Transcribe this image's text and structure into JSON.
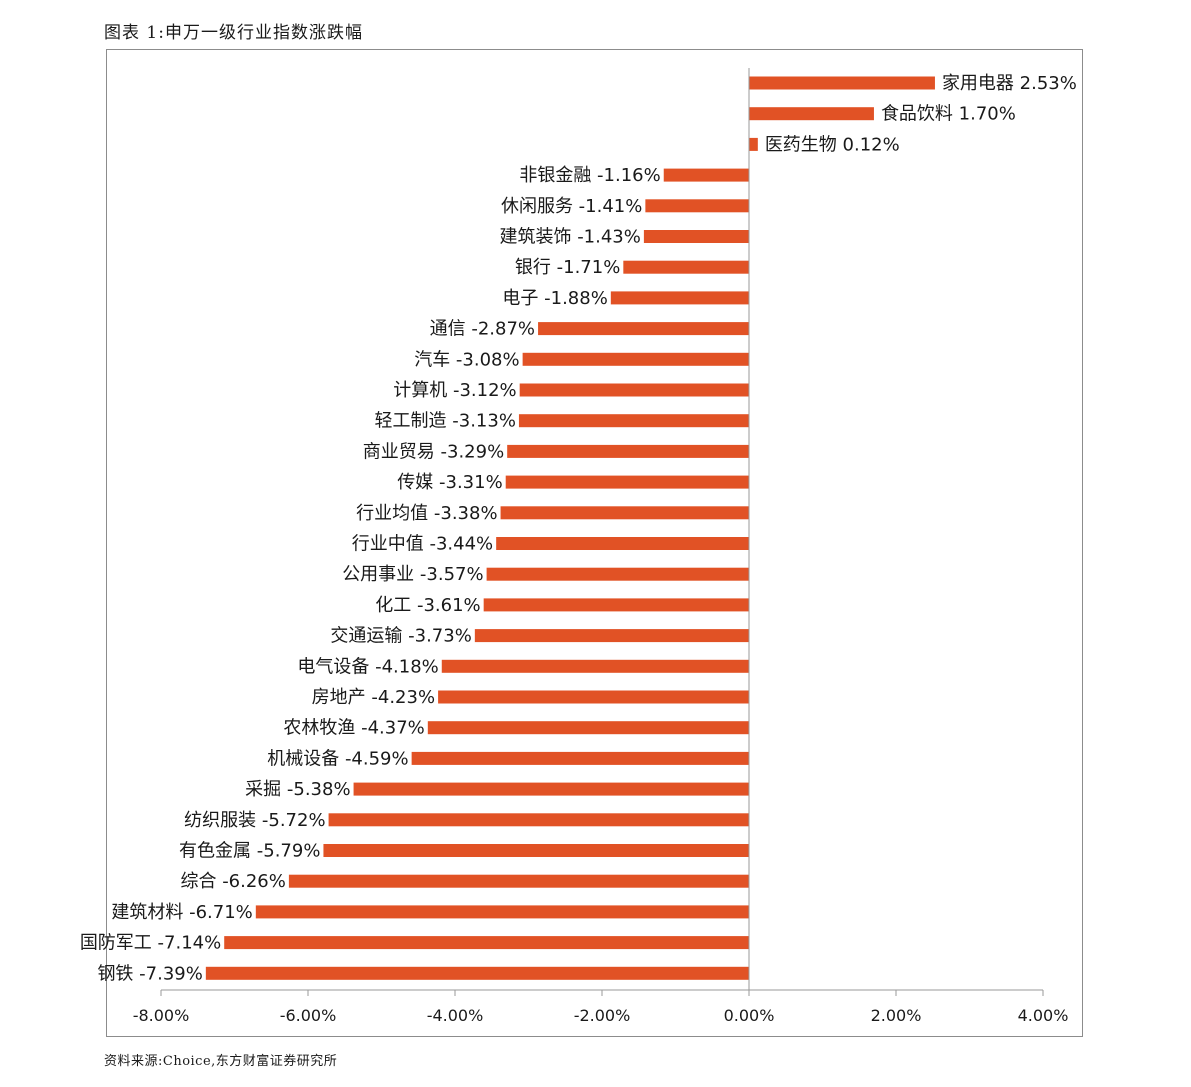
{
  "figure": {
    "title": "图表 1:申万一级行业指数涨跌幅",
    "source": "资料来源:Choice,东方财富证券研究所"
  },
  "chart_data": {
    "type": "bar",
    "orientation": "horizontal",
    "bar_color": "#E15225",
    "axis_color": "#9a9a9a",
    "value_suffix": "%",
    "xlim": [
      -8,
      4
    ],
    "xticks": [
      -8,
      -6,
      -4,
      -2,
      0,
      2,
      4
    ],
    "xtick_labels": [
      "-8.00%",
      "-6.00%",
      "-4.00%",
      "-2.00%",
      "0.00%",
      "2.00%",
      "4.00%"
    ],
    "grid": false,
    "legend": "none",
    "categories": [
      "家用电器",
      "食品饮料",
      "医药生物",
      "非银金融",
      "休闲服务",
      "建筑装饰",
      "银行",
      "电子",
      "通信",
      "汽车",
      "计算机",
      "轻工制造",
      "商业贸易",
      "传媒",
      "行业均值",
      "行业中值",
      "公用事业",
      "化工",
      "交通运输",
      "电气设备",
      "房地产",
      "农林牧渔",
      "机械设备",
      "采掘",
      "纺织服装",
      "有色金属",
      "综合",
      "建筑材料",
      "国防军工",
      "钢铁"
    ],
    "values": [
      2.53,
      1.7,
      0.12,
      -1.16,
      -1.41,
      -1.43,
      -1.71,
      -1.88,
      -2.87,
      -3.08,
      -3.12,
      -3.13,
      -3.29,
      -3.31,
      -3.38,
      -3.44,
      -3.57,
      -3.61,
      -3.73,
      -4.18,
      -4.23,
      -4.37,
      -4.59,
      -5.38,
      -5.72,
      -5.79,
      -6.26,
      -6.71,
      -7.14,
      -7.39
    ],
    "data_labels": [
      "家用电器 2.53%",
      "食品饮料 1.70%",
      "医药生物 0.12%",
      "非银金融 -1.16%",
      "休闲服务 -1.41%",
      "建筑装饰 -1.43%",
      "银行 -1.71%",
      "电子 -1.88%",
      "通信 -2.87%",
      "汽车 -3.08%",
      "计算机 -3.12%",
      "轻工制造 -3.13%",
      "商业贸易 -3.29%",
      "传媒 -3.31%",
      "行业均值 -3.38%",
      "行业中值 -3.44%",
      "公用事业 -3.57%",
      "化工 -3.61%",
      "交通运输 -3.73%",
      "电气设备 -4.18%",
      "房地产 -4.23%",
      "农林牧渔 -4.37%",
      "机械设备 -4.59%",
      "采掘 -5.38%",
      "纺织服装 -5.72%",
      "有色金属 -5.79%",
      "综合 -6.26%",
      "建筑材料 -6.71%",
      "国防军工 -7.14%",
      "钢铁 -7.39%"
    ]
  }
}
